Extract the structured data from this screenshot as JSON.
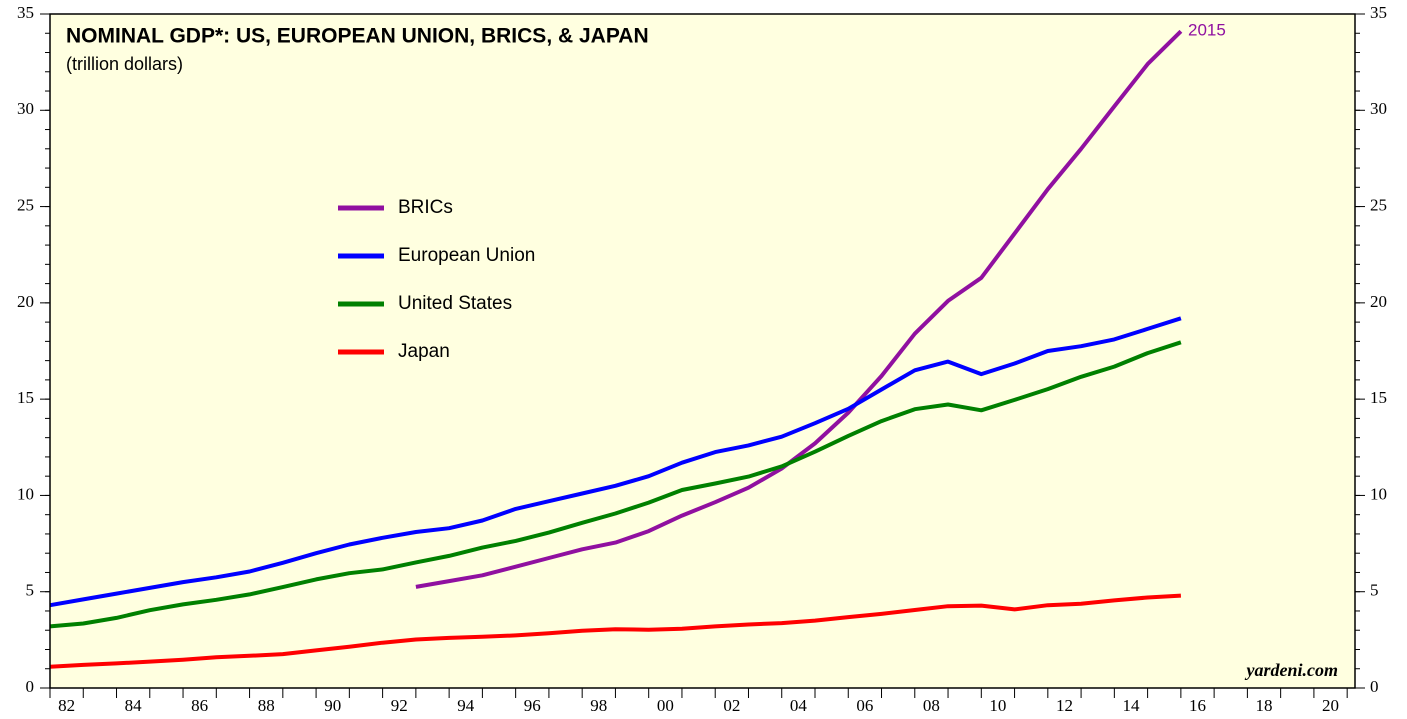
{
  "chart_data": {
    "type": "line",
    "title": "NOMINAL GDP*: US, EUROPEAN UNION, BRICS, & JAPAN",
    "subtitle": "(trillion dollars)",
    "annotations": [
      "2015",
      "yardeni.com"
    ],
    "x": [
      1981,
      1982,
      1983,
      1984,
      1985,
      1986,
      1987,
      1988,
      1989,
      1990,
      1991,
      1992,
      1993,
      1994,
      1995,
      1996,
      1997,
      1998,
      1999,
      2000,
      2001,
      2002,
      2003,
      2004,
      2005,
      2006,
      2007,
      2008,
      2009,
      2010,
      2011,
      2012,
      2013,
      2014,
      2015
    ],
    "series": [
      {
        "name": "BRICs",
        "color": "#9010a0",
        "values": [
          null,
          null,
          null,
          null,
          null,
          null,
          null,
          null,
          null,
          null,
          null,
          5.25,
          5.55,
          5.85,
          6.3,
          6.75,
          7.2,
          7.55,
          8.15,
          8.95,
          9.65,
          10.4,
          11.4,
          12.7,
          14.3,
          16.2,
          18.4,
          20.1,
          21.3,
          23.6,
          25.9,
          28.0,
          30.2,
          32.4,
          34.1
        ]
      },
      {
        "name": "European Union",
        "color": "#0000ff",
        "values": [
          4.3,
          4.6,
          4.9,
          5.2,
          5.5,
          5.75,
          6.05,
          6.5,
          7.0,
          7.45,
          7.8,
          8.1,
          8.3,
          8.7,
          9.3,
          9.7,
          10.1,
          10.5,
          11.0,
          11.7,
          12.25,
          12.6,
          13.05,
          13.75,
          14.5,
          15.5,
          16.5,
          16.95,
          16.3,
          16.85,
          17.5,
          17.75,
          18.1,
          18.65,
          19.2
        ]
      },
      {
        "name": "United States",
        "color": "#008000",
        "values": [
          3.2,
          3.35,
          3.64,
          4.04,
          4.34,
          4.58,
          4.86,
          5.24,
          5.64,
          5.96,
          6.16,
          6.52,
          6.86,
          7.29,
          7.64,
          8.07,
          8.58,
          9.06,
          9.63,
          10.28,
          10.62,
          10.98,
          11.51,
          12.27,
          13.09,
          13.86,
          14.48,
          14.72,
          14.42,
          14.96,
          15.52,
          16.16,
          16.69,
          17.39,
          17.95
        ]
      },
      {
        "name": "Japan",
        "color": "#ff0000",
        "values": [
          1.1,
          1.2,
          1.28,
          1.37,
          1.47,
          1.6,
          1.67,
          1.76,
          1.95,
          2.14,
          2.35,
          2.52,
          2.6,
          2.66,
          2.73,
          2.84,
          2.97,
          3.05,
          3.03,
          3.08,
          3.2,
          3.3,
          3.37,
          3.5,
          3.68,
          3.85,
          4.05,
          4.25,
          4.28,
          4.08,
          4.3,
          4.38,
          4.55,
          4.7,
          4.8
        ]
      }
    ],
    "xlim": [
      1981,
      2020
    ],
    "xticks": [
      {
        "value": 1981.5,
        "label": "82"
      },
      {
        "value": 1983.5,
        "label": "84"
      },
      {
        "value": 1985.5,
        "label": "86"
      },
      {
        "value": 1987.5,
        "label": "88"
      },
      {
        "value": 1989.5,
        "label": "90"
      },
      {
        "value": 1991.5,
        "label": "92"
      },
      {
        "value": 1993.5,
        "label": "94"
      },
      {
        "value": 1995.5,
        "label": "96"
      },
      {
        "value": 1997.5,
        "label": "98"
      },
      {
        "value": 1999.5,
        "label": "00"
      },
      {
        "value": 2001.5,
        "label": "02"
      },
      {
        "value": 2003.5,
        "label": "04"
      },
      {
        "value": 2005.5,
        "label": "06"
      },
      {
        "value": 2007.5,
        "label": "08"
      },
      {
        "value": 2009.5,
        "label": "10"
      },
      {
        "value": 2011.5,
        "label": "12"
      },
      {
        "value": 2013.5,
        "label": "14"
      },
      {
        "value": 2015.5,
        "label": "16"
      },
      {
        "value": 2017.5,
        "label": "18"
      },
      {
        "value": 2019.5,
        "label": "20"
      }
    ],
    "ylim": [
      0,
      35
    ],
    "yticks": [
      0,
      5,
      10,
      15,
      20,
      25,
      30,
      35
    ],
    "legend": "upper-left"
  }
}
